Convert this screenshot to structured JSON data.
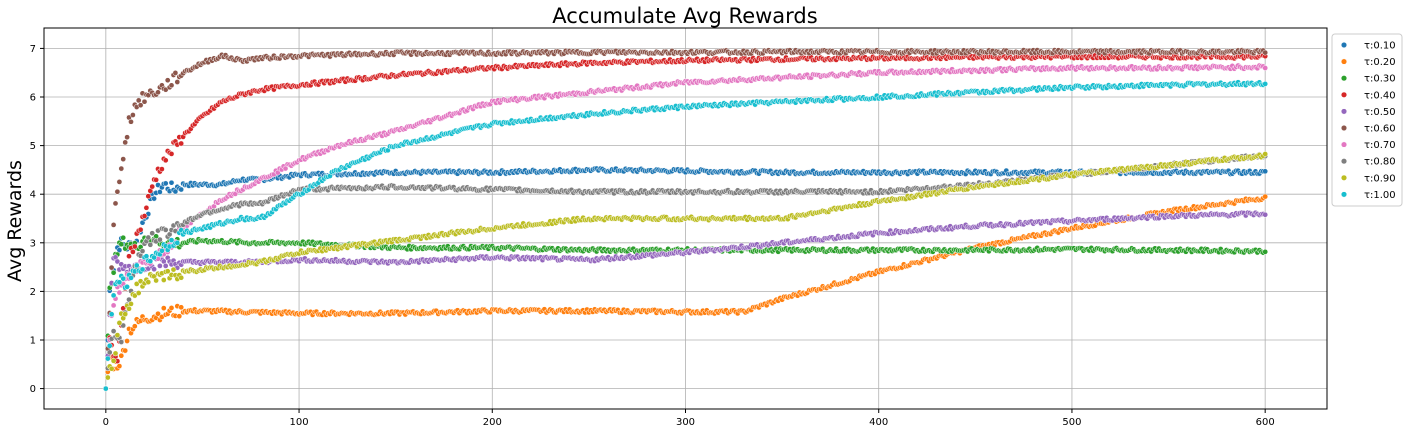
{
  "chart_data": {
    "type": "scatter",
    "title": "Accumulate Avg Rewards",
    "xlabel": "",
    "ylabel": "Avg Rewards",
    "xlim": [
      -32,
      632
    ],
    "ylim": [
      -0.42,
      7.42
    ],
    "xticks": [
      0,
      100,
      200,
      300,
      400,
      500,
      600
    ],
    "yticks": [
      0,
      1,
      2,
      3,
      4,
      5,
      6,
      7
    ],
    "grid": true,
    "legend_position": "right-outside-top",
    "series": [
      {
        "name": "τ:0.10",
        "color": "#1f77b4",
        "points": [
          [
            0,
            0
          ],
          [
            2,
            2.0
          ],
          [
            4,
            2.5
          ],
          [
            6,
            2.9
          ],
          [
            8,
            3.0
          ],
          [
            10,
            2.9
          ],
          [
            15,
            3.0
          ],
          [
            20,
            3.5
          ],
          [
            25,
            4.0
          ],
          [
            30,
            4.2
          ],
          [
            35,
            4.1
          ],
          [
            40,
            4.2
          ],
          [
            50,
            4.2
          ],
          [
            60,
            4.2
          ],
          [
            70,
            4.3
          ],
          [
            80,
            4.3
          ],
          [
            100,
            4.4
          ],
          [
            150,
            4.45
          ],
          [
            200,
            4.45
          ],
          [
            250,
            4.5
          ],
          [
            300,
            4.48
          ],
          [
            350,
            4.45
          ],
          [
            400,
            4.45
          ],
          [
            450,
            4.45
          ],
          [
            500,
            4.45
          ],
          [
            550,
            4.45
          ],
          [
            600,
            4.45
          ]
        ]
      },
      {
        "name": "τ:0.20",
        "color": "#ff7f0e",
        "points": [
          [
            0,
            0
          ],
          [
            2,
            0.7
          ],
          [
            4,
            0.5
          ],
          [
            6,
            0.5
          ],
          [
            8,
            0.6
          ],
          [
            10,
            0.9
          ],
          [
            12,
            1.2
          ],
          [
            15,
            1.3
          ],
          [
            20,
            1.45
          ],
          [
            25,
            1.5
          ],
          [
            30,
            1.55
          ],
          [
            40,
            1.6
          ],
          [
            50,
            1.6
          ],
          [
            100,
            1.55
          ],
          [
            150,
            1.55
          ],
          [
            200,
            1.6
          ],
          [
            250,
            1.6
          ],
          [
            300,
            1.58
          ],
          [
            330,
            1.58
          ],
          [
            350,
            1.85
          ],
          [
            400,
            2.4
          ],
          [
            450,
            2.9
          ],
          [
            500,
            3.3
          ],
          [
            550,
            3.65
          ],
          [
            600,
            3.93
          ]
        ]
      },
      {
        "name": "τ:0.30",
        "color": "#2ca02c",
        "points": [
          [
            0,
            0
          ],
          [
            2,
            2.0
          ],
          [
            4,
            2.5
          ],
          [
            6,
            2.8
          ],
          [
            8,
            3.0
          ],
          [
            10,
            3.0
          ],
          [
            15,
            2.9
          ],
          [
            20,
            3.1
          ],
          [
            25,
            3.1
          ],
          [
            30,
            3.0
          ],
          [
            40,
            3.0
          ],
          [
            50,
            3.05
          ],
          [
            75,
            3.0
          ],
          [
            100,
            3.0
          ],
          [
            150,
            2.9
          ],
          [
            200,
            2.9
          ],
          [
            250,
            2.85
          ],
          [
            300,
            2.85
          ],
          [
            350,
            2.85
          ],
          [
            400,
            2.85
          ],
          [
            450,
            2.85
          ],
          [
            500,
            2.87
          ],
          [
            550,
            2.85
          ],
          [
            600,
            2.83
          ]
        ]
      },
      {
        "name": "τ:0.40",
        "color": "#d62728",
        "points": [
          [
            0,
            0
          ],
          [
            2,
            1.0
          ],
          [
            4,
            0.7
          ],
          [
            6,
            0.6
          ],
          [
            8,
            1.2
          ],
          [
            10,
            2.0
          ],
          [
            12,
            2.8
          ],
          [
            15,
            3.0
          ],
          [
            20,
            3.6
          ],
          [
            25,
            4.3
          ],
          [
            30,
            4.7
          ],
          [
            40,
            5.2
          ],
          [
            50,
            5.6
          ],
          [
            60,
            5.9
          ],
          [
            70,
            6.05
          ],
          [
            80,
            6.15
          ],
          [
            100,
            6.25
          ],
          [
            150,
            6.45
          ],
          [
            200,
            6.6
          ],
          [
            250,
            6.7
          ],
          [
            300,
            6.75
          ],
          [
            350,
            6.78
          ],
          [
            400,
            6.8
          ],
          [
            450,
            6.82
          ],
          [
            500,
            6.83
          ],
          [
            550,
            6.83
          ],
          [
            600,
            6.83
          ]
        ]
      },
      {
        "name": "τ:0.50",
        "color": "#9467bd",
        "points": [
          [
            0,
            0
          ],
          [
            2,
            1.5
          ],
          [
            4,
            2.7
          ],
          [
            6,
            2.6
          ],
          [
            8,
            2.5
          ],
          [
            10,
            2.5
          ],
          [
            15,
            2.5
          ],
          [
            20,
            2.55
          ],
          [
            30,
            2.6
          ],
          [
            50,
            2.6
          ],
          [
            75,
            2.6
          ],
          [
            100,
            2.65
          ],
          [
            150,
            2.6
          ],
          [
            200,
            2.7
          ],
          [
            250,
            2.65
          ],
          [
            300,
            2.8
          ],
          [
            350,
            3.0
          ],
          [
            400,
            3.2
          ],
          [
            450,
            3.35
          ],
          [
            500,
            3.45
          ],
          [
            550,
            3.55
          ],
          [
            600,
            3.6
          ]
        ]
      },
      {
        "name": "τ:0.60",
        "color": "#8c564b",
        "points": [
          [
            0,
            0
          ],
          [
            2,
            1.5
          ],
          [
            4,
            3.35
          ],
          [
            6,
            4.1
          ],
          [
            8,
            4.6
          ],
          [
            10,
            5.0
          ],
          [
            12,
            5.5
          ],
          [
            15,
            5.8
          ],
          [
            20,
            6.0
          ],
          [
            25,
            6.1
          ],
          [
            30,
            6.2
          ],
          [
            40,
            6.5
          ],
          [
            50,
            6.7
          ],
          [
            60,
            6.85
          ],
          [
            70,
            6.75
          ],
          [
            80,
            6.8
          ],
          [
            100,
            6.85
          ],
          [
            150,
            6.9
          ],
          [
            200,
            6.9
          ],
          [
            250,
            6.92
          ],
          [
            300,
            6.92
          ],
          [
            350,
            6.93
          ],
          [
            400,
            6.93
          ],
          [
            450,
            6.93
          ],
          [
            500,
            6.93
          ],
          [
            550,
            6.93
          ],
          [
            600,
            6.93
          ]
        ]
      },
      {
        "name": "τ:0.70",
        "color": "#e377c2",
        "points": [
          [
            0,
            0
          ],
          [
            2,
            1.0
          ],
          [
            4,
            1.8
          ],
          [
            6,
            2.0
          ],
          [
            8,
            2.1
          ],
          [
            10,
            2.2
          ],
          [
            15,
            2.5
          ],
          [
            20,
            2.6
          ],
          [
            30,
            2.8
          ],
          [
            40,
            3.3
          ],
          [
            50,
            3.6
          ],
          [
            60,
            3.9
          ],
          [
            70,
            4.1
          ],
          [
            80,
            4.3
          ],
          [
            100,
            4.7
          ],
          [
            120,
            5.0
          ],
          [
            150,
            5.3
          ],
          [
            200,
            5.9
          ],
          [
            250,
            6.1
          ],
          [
            300,
            6.3
          ],
          [
            350,
            6.4
          ],
          [
            400,
            6.5
          ],
          [
            450,
            6.55
          ],
          [
            500,
            6.6
          ],
          [
            550,
            6.6
          ],
          [
            600,
            6.62
          ]
        ]
      },
      {
        "name": "τ:0.80",
        "color": "#7f7f7f",
        "points": [
          [
            0,
            0
          ],
          [
            2,
            0.8
          ],
          [
            4,
            1.2
          ],
          [
            6,
            1.0
          ],
          [
            8,
            1.0
          ],
          [
            10,
            1.5
          ],
          [
            15,
            2.5
          ],
          [
            20,
            3.0
          ],
          [
            30,
            3.2
          ],
          [
            40,
            3.4
          ],
          [
            50,
            3.6
          ],
          [
            60,
            3.7
          ],
          [
            70,
            3.8
          ],
          [
            80,
            3.8
          ],
          [
            100,
            4.1
          ],
          [
            150,
            4.15
          ],
          [
            200,
            4.1
          ],
          [
            250,
            4.05
          ],
          [
            300,
            4.05
          ],
          [
            350,
            4.05
          ],
          [
            400,
            4.05
          ],
          [
            450,
            4.2
          ],
          [
            500,
            4.4
          ],
          [
            550,
            4.6
          ],
          [
            600,
            4.8
          ]
        ]
      },
      {
        "name": "τ:0.90",
        "color": "#bcbd22",
        "points": [
          [
            0,
            0
          ],
          [
            2,
            0.5
          ],
          [
            4,
            0.5
          ],
          [
            6,
            1.0
          ],
          [
            8,
            1.5
          ],
          [
            10,
            1.6
          ],
          [
            15,
            2.0
          ],
          [
            20,
            2.2
          ],
          [
            30,
            2.3
          ],
          [
            40,
            2.4
          ],
          [
            50,
            2.45
          ],
          [
            60,
            2.5
          ],
          [
            80,
            2.6
          ],
          [
            100,
            2.8
          ],
          [
            150,
            3.05
          ],
          [
            200,
            3.3
          ],
          [
            250,
            3.5
          ],
          [
            300,
            3.5
          ],
          [
            350,
            3.5
          ],
          [
            400,
            3.85
          ],
          [
            450,
            4.15
          ],
          [
            500,
            4.4
          ],
          [
            550,
            4.6
          ],
          [
            600,
            4.8
          ]
        ]
      },
      {
        "name": "τ:1.00",
        "color": "#17becf",
        "points": [
          [
            0,
            0
          ],
          [
            2,
            1.0
          ],
          [
            4,
            1.9
          ],
          [
            6,
            2.3
          ],
          [
            8,
            2.2
          ],
          [
            10,
            2.1
          ],
          [
            15,
            2.4
          ],
          [
            20,
            2.6
          ],
          [
            30,
            2.9
          ],
          [
            40,
            3.2
          ],
          [
            50,
            3.3
          ],
          [
            60,
            3.4
          ],
          [
            70,
            3.5
          ],
          [
            80,
            3.5
          ],
          [
            100,
            4.0
          ],
          [
            120,
            4.5
          ],
          [
            150,
            5.0
          ],
          [
            200,
            5.45
          ],
          [
            250,
            5.65
          ],
          [
            300,
            5.8
          ],
          [
            350,
            5.9
          ],
          [
            400,
            6.0
          ],
          [
            450,
            6.1
          ],
          [
            500,
            6.2
          ],
          [
            550,
            6.25
          ],
          [
            600,
            6.28
          ]
        ]
      }
    ]
  }
}
